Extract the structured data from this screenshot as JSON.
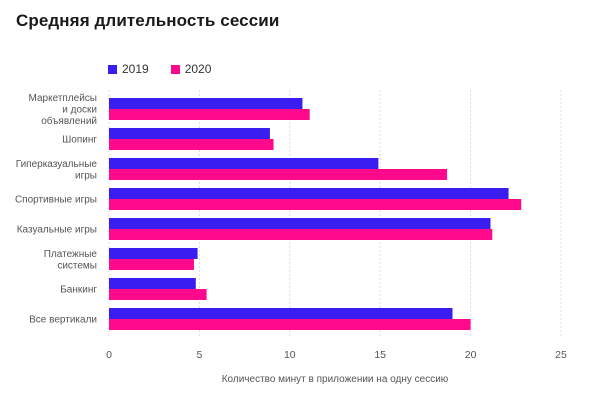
{
  "chart_data": {
    "type": "bar",
    "orientation": "horizontal",
    "title": "Средняя длительность сессии",
    "xlabel": "Количество минут в приложении на одну сессию",
    "ylabel": "",
    "xlim": [
      0,
      25
    ],
    "xticks": [
      0,
      5,
      10,
      15,
      20,
      25
    ],
    "grid": true,
    "legend_position": "top-left",
    "categories": [
      "Маркетплейсы\nи доски\nобъявлений",
      "Шопинг",
      "Гиперказуальные\nигры",
      "Спортивные игры",
      "Казуальные игры",
      "Платежные\nсистемы",
      "Банкинг",
      "Все вертикали"
    ],
    "series": [
      {
        "name": "2019",
        "color": "#3a1df0",
        "values": [
          10.7,
          8.9,
          14.9,
          22.1,
          21.1,
          4.9,
          4.8,
          19.0
        ]
      },
      {
        "name": "2020",
        "color": "#ff0a8c",
        "values": [
          11.1,
          9.1,
          18.7,
          22.8,
          21.2,
          4.7,
          5.4,
          20.0
        ]
      }
    ]
  }
}
